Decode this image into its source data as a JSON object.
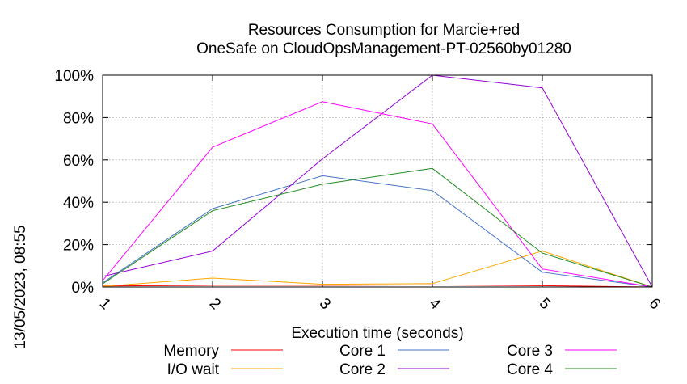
{
  "chart_data": {
    "type": "line",
    "title": "Resources Consumption for Marcie+red",
    "subtitle": "OneSafe on CloudOpsManagement-PT-02560by01280",
    "xlabel": "Execution time (seconds)",
    "ylabel": "",
    "side_label": "13/05/2023, 08:55",
    "x": [
      1,
      2,
      3,
      4,
      5,
      6
    ],
    "xlim": [
      1,
      6
    ],
    "ylim": [
      0,
      100
    ],
    "x_ticks": [
      "1",
      "2",
      "3",
      "4",
      "5",
      "6"
    ],
    "y_ticks": [
      "0%",
      "20%",
      "40%",
      "60%",
      "80%",
      "100%"
    ],
    "grid": true,
    "legend_position": "below",
    "series": [
      {
        "name": "Memory",
        "color": "#ff0000",
        "values": [
          0.5,
          0.8,
          0.8,
          1.0,
          0.6,
          0
        ]
      },
      {
        "name": "I/O wait",
        "color": "#ffa500",
        "values": [
          0.3,
          4.2,
          1.3,
          1.6,
          17.0,
          0
        ]
      },
      {
        "name": "Core 1",
        "color": "#4472c4",
        "values": [
          2.0,
          37.0,
          52.5,
          45.5,
          7.0,
          0
        ]
      },
      {
        "name": "Core 2",
        "color": "#9400d3",
        "values": [
          5.0,
          17.0,
          60.5,
          100.0,
          94.0,
          0
        ]
      },
      {
        "name": "Core 3",
        "color": "#ff00ff",
        "values": [
          3.0,
          66.0,
          87.5,
          77.0,
          8.5,
          0
        ]
      },
      {
        "name": "Core 4",
        "color": "#228b22",
        "values": [
          1.5,
          36.0,
          48.5,
          56.0,
          16.0,
          0
        ]
      }
    ]
  }
}
